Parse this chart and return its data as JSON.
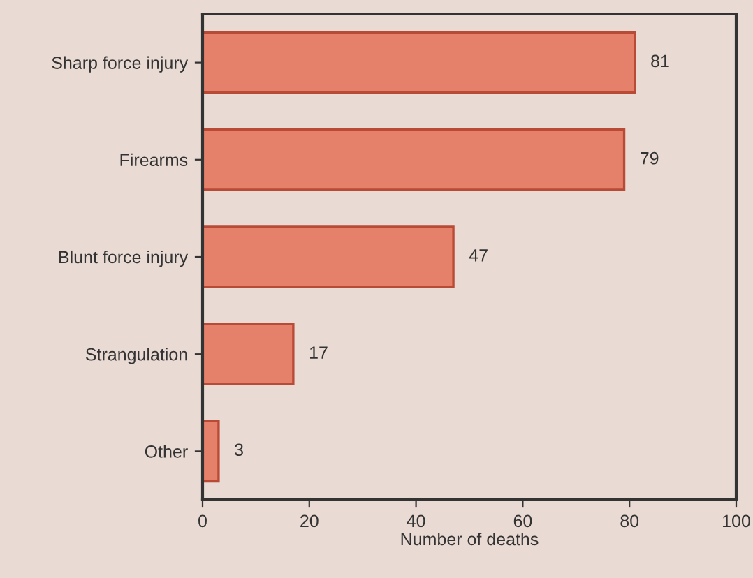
{
  "chart_data": {
    "type": "bar",
    "orientation": "horizontal",
    "xlabel": "Number of deaths",
    "categories": [
      "Sharp force injury",
      "Firearms",
      "Blunt force injury",
      "Strangulation",
      "Other"
    ],
    "values": [
      81,
      79,
      47,
      17,
      3
    ],
    "color": "#e5806a",
    "xlim": [
      0,
      100
    ],
    "xticks": [
      0,
      20,
      40,
      60,
      80,
      100
    ],
    "data_labels": true,
    "grid": false,
    "legend": false
  }
}
